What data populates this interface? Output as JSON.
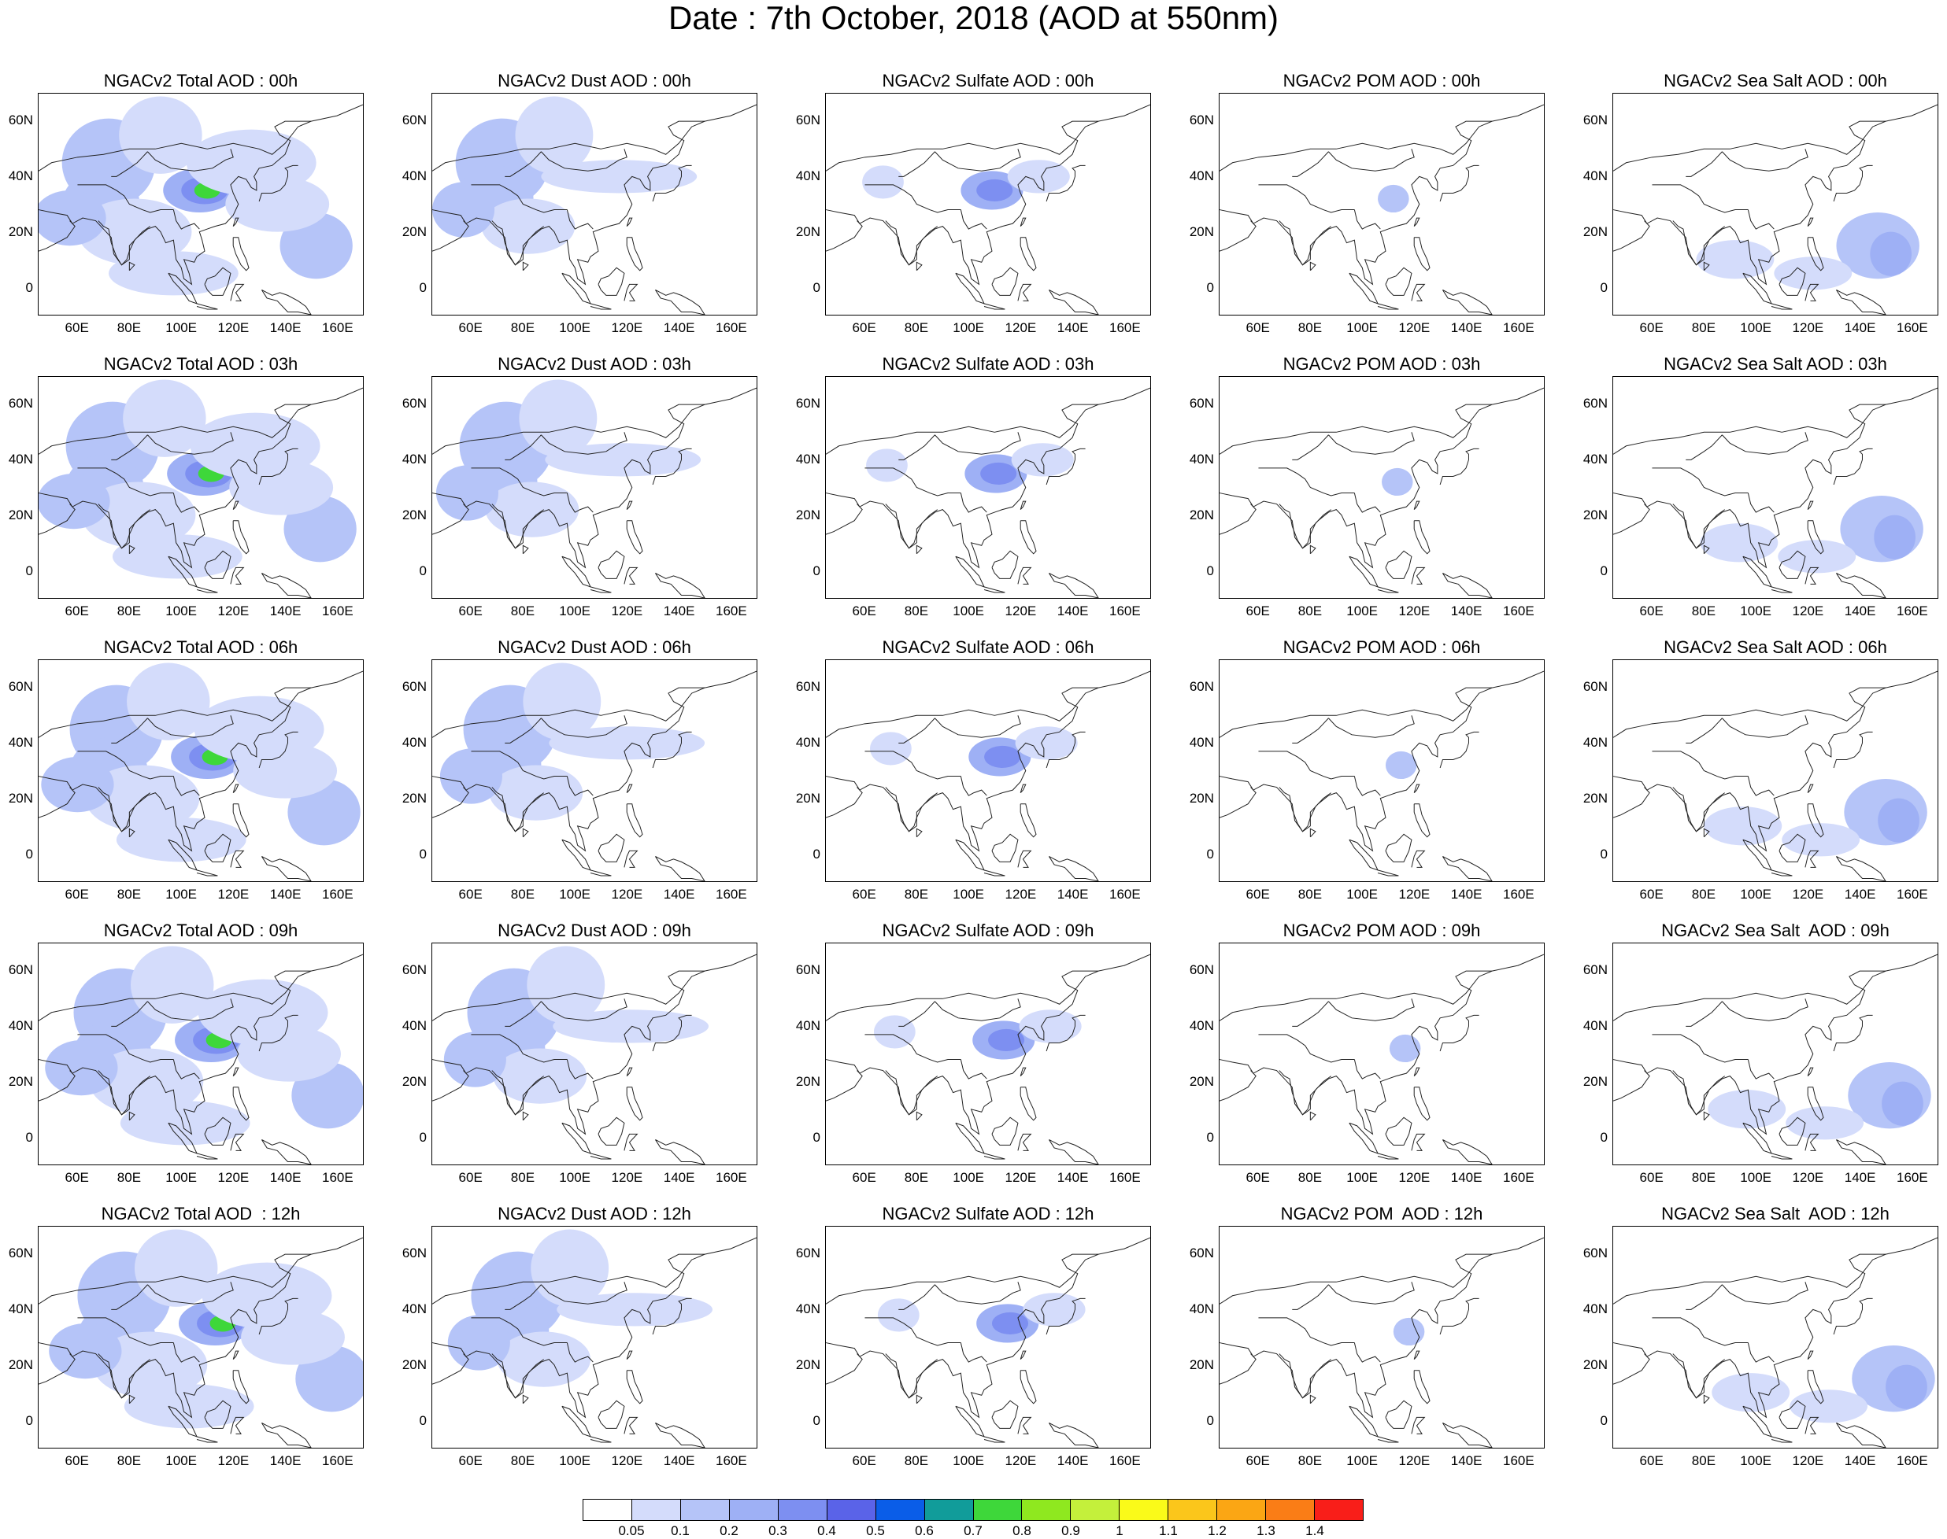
{
  "title": "Date : 7th October, 2018 (AOD at 550nm)",
  "panel_titles": [
    [
      "NGACv2 Total AOD : 00h",
      "NGACv2 Dust AOD : 00h",
      "NGACv2 Sulfate AOD : 00h",
      "NGACv2 POM AOD : 00h",
      "NGACv2 Sea Salt AOD : 00h"
    ],
    [
      "NGACv2 Total AOD : 03h",
      "NGACv2 Dust AOD : 03h",
      "NGACv2 Sulfate AOD : 03h",
      "NGACv2 POM AOD : 03h",
      "NGACv2 Sea Salt AOD : 03h"
    ],
    [
      "NGACv2 Total AOD : 06h",
      "NGACv2 Dust AOD : 06h",
      "NGACv2 Sulfate AOD : 06h",
      "NGACv2 POM AOD : 06h",
      "NGACv2 Sea Salt AOD : 06h"
    ],
    [
      "NGACv2 Total AOD : 09h",
      "NGACv2 Dust AOD : 09h",
      "NGACv2 Sulfate AOD : 09h",
      "NGACv2 POM AOD : 09h",
      "NGACv2 Sea Salt  AOD : 09h"
    ],
    [
      "NGACv2 Total AOD  : 12h",
      "NGACv2 Dust AOD : 12h",
      "NGACv2 Sulfate AOD : 12h",
      "NGACv2 POM  AOD : 12h",
      "NGACv2 Sea Salt  AOD : 12h"
    ]
  ],
  "lat_ticks": [
    "60N",
    "40N",
    "20N",
    "0"
  ],
  "lon_ticks": [
    "60E",
    "80E",
    "100E",
    "120E",
    "140E",
    "160E"
  ],
  "colorbar": {
    "labels": [
      "0.05",
      "0.1",
      "0.2",
      "0.3",
      "0.4",
      "0.5",
      "0.6",
      "0.7",
      "0.8",
      "0.9",
      "1",
      "1.1",
      "1.2",
      "1.3",
      "1.4"
    ],
    "colors": [
      "#ffffff",
      "#d4dcfb",
      "#b5c4f8",
      "#9eb0f5",
      "#7d8ff1",
      "#5a63e8",
      "#0a5de8",
      "#119c9a",
      "#3ed73a",
      "#8fe81f",
      "#c4f03b",
      "#fafa19",
      "#fbc61b",
      "#fba614",
      "#fa7d16",
      "#f91e19"
    ]
  },
  "aerosol_colors": {
    "light": "#d4dcfb",
    "medium": "#b5c4f8",
    "strong": "#9eb0f5",
    "deep": "#7d8ff1",
    "peak": "#5a63e8",
    "hot": "#3ed73a"
  }
}
